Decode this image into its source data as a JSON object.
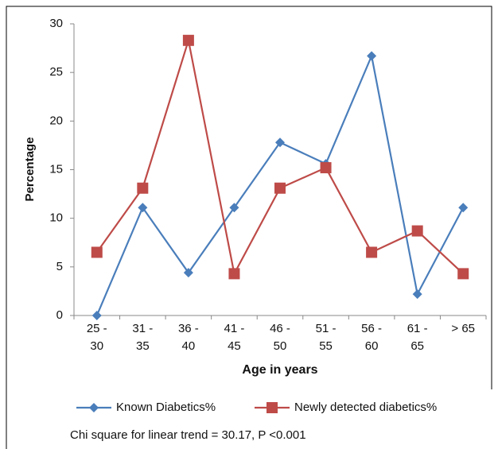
{
  "chart_data": {
    "type": "line",
    "x_label": "Age in years",
    "y_label": "Percentage",
    "annotation": "Chi square for linear trend = 30.17, P <0.001",
    "categories": [
      "25 - 30",
      "31 - 35",
      "36 - 40",
      "41 - 45",
      "46 - 50",
      "51 - 55",
      "56 - 60",
      "61 - 65",
      "> 65"
    ],
    "series": [
      {
        "name": "Known Diabetics%",
        "color": "#4a7ebb",
        "marker": "diamond",
        "values": [
          0,
          11.1,
          4.4,
          11.1,
          17.8,
          15.6,
          26.7,
          2.2,
          11.1
        ]
      },
      {
        "name": "Newly detected diabetics%",
        "color": "#be4b48",
        "marker": "square",
        "values": [
          6.5,
          13.1,
          28.3,
          4.3,
          13.1,
          15.2,
          6.5,
          8.7,
          4.3
        ]
      }
    ],
    "ylim": [
      0,
      30
    ],
    "yticks": [
      0,
      5,
      10,
      15,
      20,
      25,
      30
    ],
    "legend": "bottom"
  }
}
